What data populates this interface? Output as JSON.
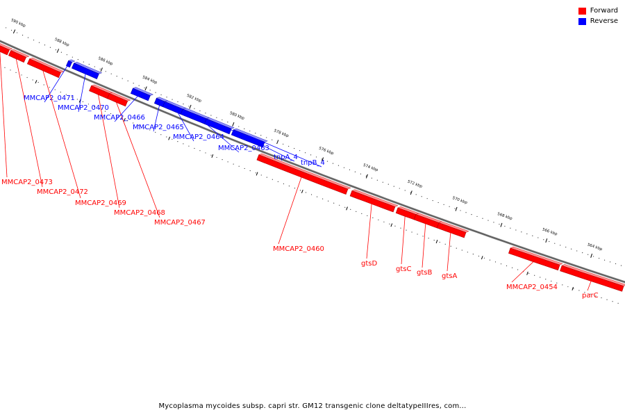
{
  "legend": {
    "forward_label": "Forward",
    "reverse_label": "Reverse",
    "forward_color": "#ff0000",
    "reverse_color": "#0000ff"
  },
  "caption": "Mycoplasma mycoides subsp. capri str. GM12 transgenic clone deltatypeIIIres, com...",
  "scale": {
    "unit": "kbp",
    "ticks": [
      {
        "kbp": 590,
        "label": "590 kbp"
      },
      {
        "kbp": 588,
        "label": "588 kbp"
      },
      {
        "kbp": 586,
        "label": "586 kbp"
      },
      {
        "kbp": 584,
        "label": "584 kbp"
      },
      {
        "kbp": 582,
        "label": "582 kbp"
      },
      {
        "kbp": 580,
        "label": "580 kbp"
      },
      {
        "kbp": 578,
        "label": "578 kbp"
      },
      {
        "kbp": 576,
        "label": "576 kbp"
      },
      {
        "kbp": 574,
        "label": "574 kbp"
      },
      {
        "kbp": 572,
        "label": "572 kbp"
      },
      {
        "kbp": 570,
        "label": "570 kbp"
      },
      {
        "kbp": 568,
        "label": "568 kbp"
      },
      {
        "kbp": 566,
        "label": "566 kbp"
      },
      {
        "kbp": 564,
        "label": "564 kbp"
      }
    ]
  },
  "features": [
    {
      "name": "MMCAP2_0473",
      "strand": "forward"
    },
    {
      "name": "MMCAP2_0472",
      "strand": "forward"
    },
    {
      "name": "MMCAP2_0471",
      "strand": "reverse"
    },
    {
      "name": "MMCAP2_0470",
      "strand": "reverse"
    },
    {
      "name": "MMCAP2_0469",
      "strand": "forward"
    },
    {
      "name": "MMCAP2_0468",
      "strand": "forward"
    },
    {
      "name": "MMCAP2_0467",
      "strand": "forward"
    },
    {
      "name": "MMCAP2_0466",
      "strand": "reverse"
    },
    {
      "name": "MMCAP2_0465",
      "strand": "reverse"
    },
    {
      "name": "MMCAP2_0464",
      "strand": "reverse"
    },
    {
      "name": "MMCAP2_0463",
      "strand": "reverse"
    },
    {
      "name": "tnpA_4",
      "strand": "reverse"
    },
    {
      "name": "tnpB_4",
      "strand": "reverse"
    },
    {
      "name": "MMCAP2_0460",
      "strand": "forward"
    },
    {
      "name": "gtsD",
      "strand": "forward"
    },
    {
      "name": "gtsC",
      "strand": "forward"
    },
    {
      "name": "gtsB",
      "strand": "forward"
    },
    {
      "name": "gtsA",
      "strand": "forward"
    },
    {
      "name": "MMCAP2_0454",
      "strand": "forward"
    },
    {
      "name": "parC",
      "strand": "forward"
    }
  ]
}
